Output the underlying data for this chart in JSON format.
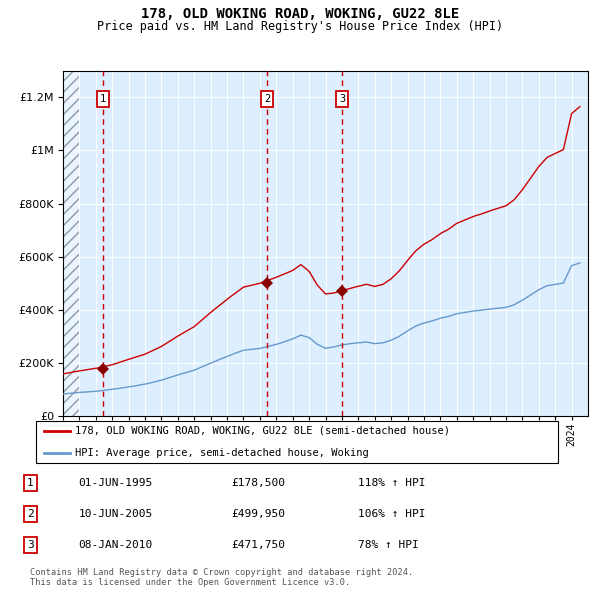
{
  "title": "178, OLD WOKING ROAD, WOKING, GU22 8LE",
  "subtitle": "Price paid vs. HM Land Registry's House Price Index (HPI)",
  "ylim": [
    0,
    1300000
  ],
  "yticks": [
    0,
    200000,
    400000,
    600000,
    800000,
    1000000,
    1200000
  ],
  "ytick_labels": [
    "£0",
    "£200K",
    "£400K",
    "£600K",
    "£800K",
    "£1M",
    "£1.2M"
  ],
  "hpi_color": "#6699cc",
  "price_color": "#cc0000",
  "bg_color": "#ddeeff",
  "legend_line1": "178, OLD WOKING ROAD, WOKING, GU22 8LE (semi-detached house)",
  "legend_line2": "HPI: Average price, semi-detached house, Woking",
  "sale1_date": "01-JUN-1995",
  "sale1_price": 178500,
  "sale1_hpi": "118% ↑ HPI",
  "sale1_x": 1995.42,
  "sale2_date": "10-JUN-2005",
  "sale2_price": 499950,
  "sale2_hpi": "106% ↑ HPI",
  "sale2_x": 2005.44,
  "sale3_date": "08-JAN-2010",
  "sale3_price": 471750,
  "sale3_hpi": "78% ↑ HPI",
  "sale3_x": 2010.02,
  "footnote": "Contains HM Land Registry data © Crown copyright and database right 2024.\nThis data is licensed under the Open Government Licence v3.0."
}
